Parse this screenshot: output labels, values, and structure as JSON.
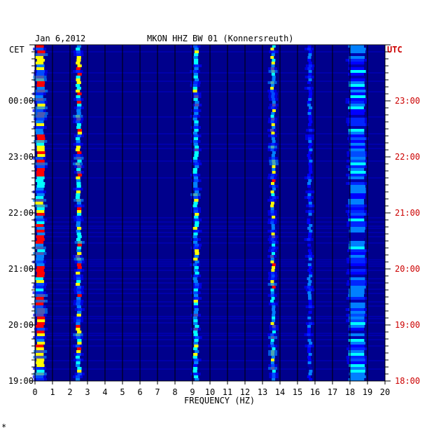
{
  "chart_data": {
    "type": "heatmap",
    "date": "Jan 6,2012",
    "title": "MKON HHZ BW 01 (Konnersreuth)",
    "xlabel": "FREQUENCY (HZ)",
    "x_ticks": [
      "0",
      "1",
      "2",
      "3",
      "4",
      "5",
      "6",
      "7",
      "8",
      "9",
      "10",
      "11",
      "12",
      "13",
      "14",
      "15",
      "16",
      "17",
      "18",
      "19",
      "20"
    ],
    "xlim": [
      0,
      20
    ],
    "left_axis": {
      "label": "CET",
      "ticks": [
        "00:00",
        "23:00",
        "22:00",
        "21:00",
        "20:00",
        "19:00"
      ],
      "color": "#000000"
    },
    "right_axis": {
      "label": "UTC",
      "ticks": [
        "23:00",
        "22:00",
        "21:00",
        "20:00",
        "19:00",
        "18:00"
      ],
      "color": "#cc0000"
    },
    "background_color": "#00008c",
    "spectral_lines_hz": [
      0.3,
      2.5,
      9.2,
      13.6,
      15.7,
      18.4
    ],
    "colormap": [
      "#00008c",
      "#0000ff",
      "#0080ff",
      "#00ffff",
      "#ffff00",
      "#ff0000"
    ]
  }
}
